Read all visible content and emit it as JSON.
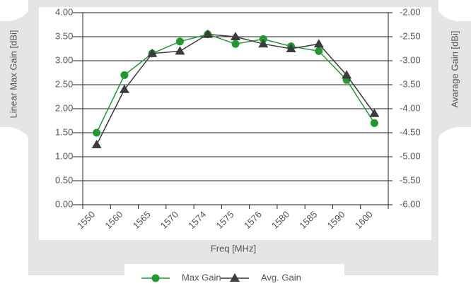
{
  "chart_data": {
    "type": "line",
    "x_label": "Freq [MHz]",
    "y_label": "Linear Max Gain [dBi]",
    "y2_label": "Avarage Gain [dBi]",
    "categories": [
      "1550",
      "1560",
      "1565",
      "1570",
      "1574",
      "1575",
      "1576",
      "1580",
      "1585",
      "1590",
      "1600"
    ],
    "ylim": [
      0,
      4
    ],
    "yticks": [
      {
        "value": 0,
        "label": "0.00"
      },
      {
        "value": 0.5,
        "label": "0.50"
      },
      {
        "value": 1,
        "label": "1.00"
      },
      {
        "value": 1.5,
        "label": "1.50"
      },
      {
        "value": 2,
        "label": "2.00"
      },
      {
        "value": 2.5,
        "label": "2.50"
      },
      {
        "value": 3,
        "label": "3.00"
      },
      {
        "value": 3.5,
        "label": "3.50"
      },
      {
        "value": 4,
        "label": "4.00"
      }
    ],
    "y2lim": [
      -6,
      -2
    ],
    "y2ticks": [
      {
        "value": -6,
        "label": "-6.00"
      },
      {
        "value": -5.5,
        "label": "-5.50"
      },
      {
        "value": -5,
        "label": "-5.00"
      },
      {
        "value": -4.5,
        "label": "-4.50"
      },
      {
        "value": -4,
        "label": "-4.00"
      },
      {
        "value": -3.5,
        "label": "-3.50"
      },
      {
        "value": -3,
        "label": "-3.00"
      },
      {
        "value": -2.5,
        "label": "-2.50"
      },
      {
        "value": -2,
        "label": "-2.00"
      }
    ],
    "grid": true,
    "legend": "bottom",
    "series": [
      {
        "name": "Max Gain",
        "color": "#1f9a2e",
        "marker": "circle",
        "values": [
          1.5,
          2.7,
          3.15,
          3.4,
          3.55,
          3.35,
          3.45,
          3.3,
          3.2,
          2.6,
          1.7
        ]
      },
      {
        "name": "Avg. Gain",
        "color": "#3c3c3c",
        "marker": "triangle",
        "axis": "y2",
        "values": [
          -4.75,
          -3.6,
          -2.85,
          -2.8,
          -2.45,
          -2.5,
          -2.65,
          -2.75,
          -2.65,
          -3.3,
          -4.1
        ]
      }
    ]
  }
}
